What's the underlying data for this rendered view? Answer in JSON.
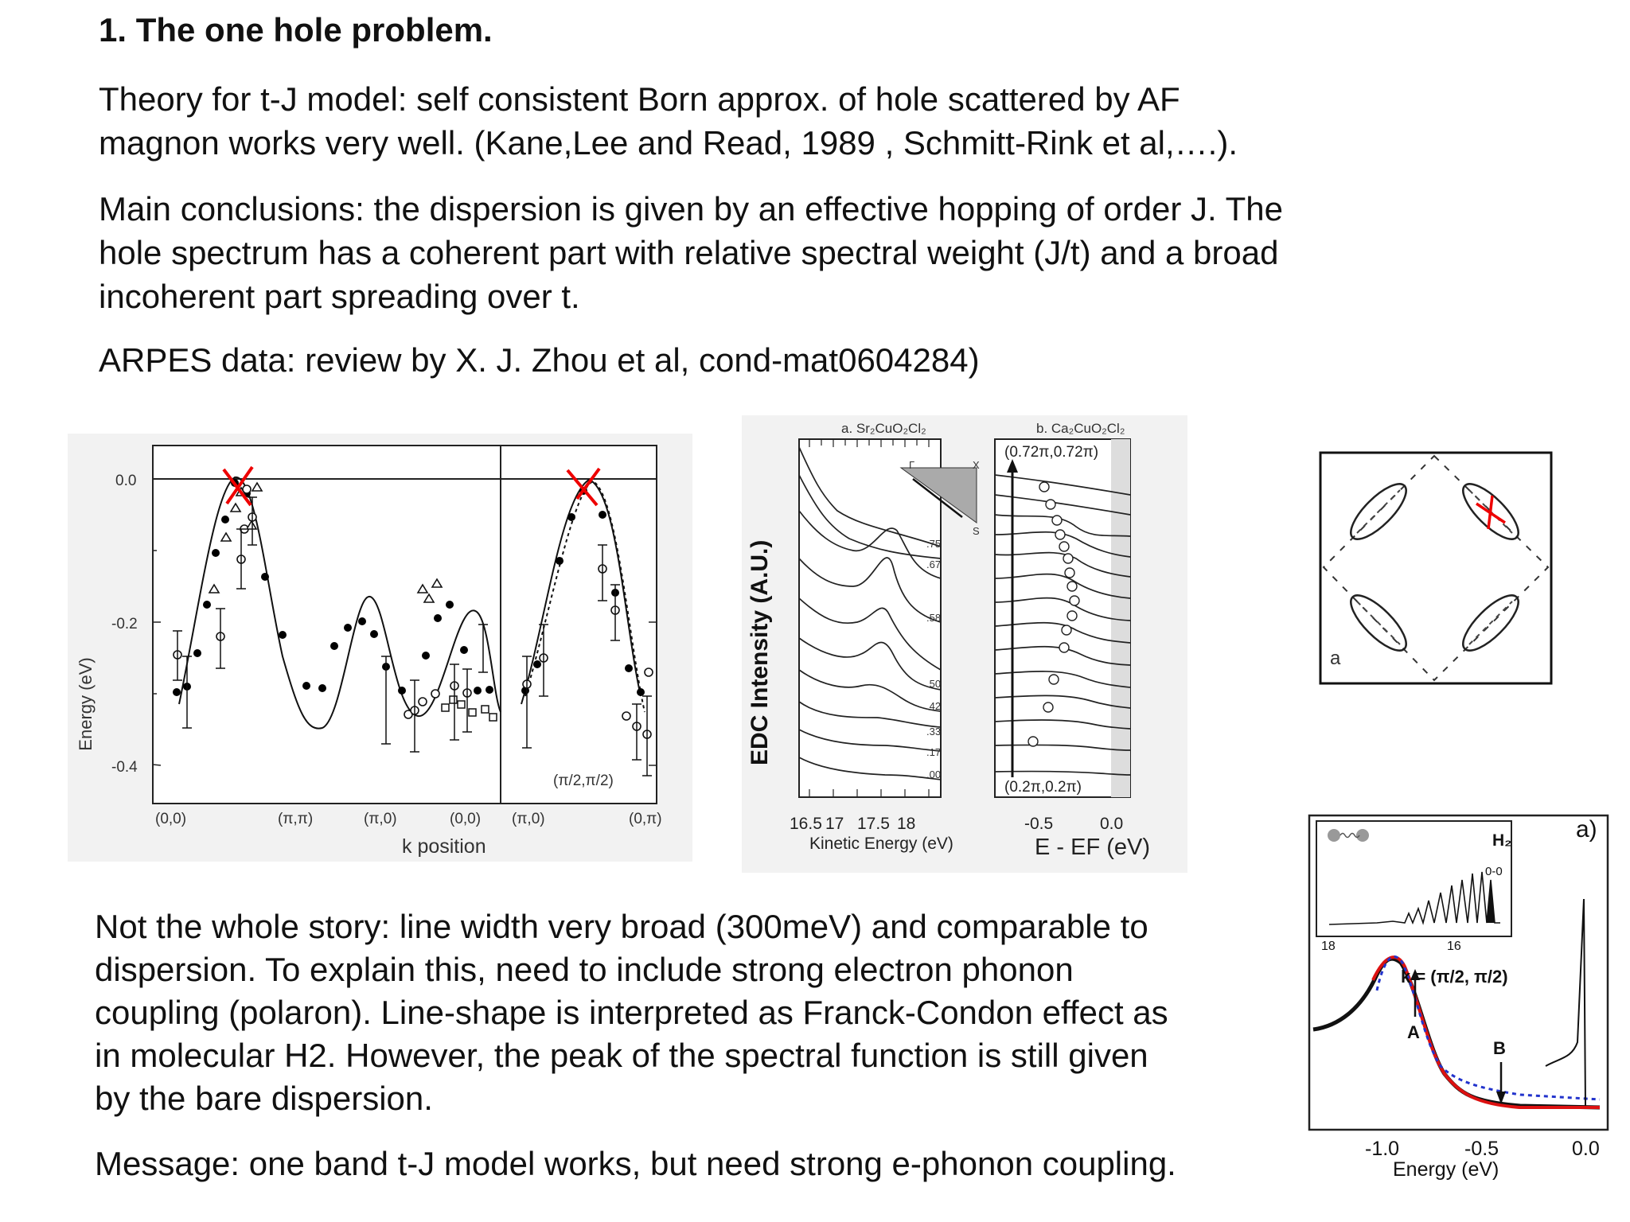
{
  "heading": "1. The one hole problem.",
  "paragraphs": {
    "p1_l1": "Theory for t-J model: self consistent Born approx. of hole scattered by AF",
    "p1_l2": "magnon works very well. (Kane,Lee and Read, 1989 , Schmitt-Rink et al,….).",
    "p2_l1": "Main conclusions: the dispersion is given by an effective hopping of order J. The",
    "p2_l2": "hole spectrum has a coherent part with relative spectral weight (J/t) and a broad",
    "p2_l3": "incoherent part spreading over t.",
    "p3": "ARPES data: review by X. J. Zhou et al, cond-mat0604284)",
    "p4_l1": "Not the whole story: line width very broad (300meV) and comparable to",
    "p4_l2": "dispersion. To explain this, need to include strong electron phonon",
    "p4_l3": "coupling (polaron). Line-shape is interpreted as Franck-Condon effect as",
    "p4_l4": "in molecular H2. However, the peak of the spectral function is still given",
    "p4_l5": "by the bare dispersion.",
    "p5": "Message: one band t-J model works, but need strong e-phonon coupling."
  },
  "fig1": {
    "ylabel": "Energy (eV)",
    "xlabel": "k position",
    "yticks": [
      "0.0",
      "-0.2",
      "-0.4"
    ],
    "xticks": [
      "(0,0)",
      "(π,π)",
      "(π,0)",
      "(0,0)",
      "(π,0)",
      "(0,π)"
    ],
    "annotation": "(π/2,π/2)"
  },
  "fig2": {
    "title_a": "a. Sr₂CuO₂Cl₂",
    "title_b": "b. Ca₂CuO₂Cl₂",
    "ylabel": "EDC Intensity (A.U.)",
    "xlabel_a": "Kinetic Energy (eV)",
    "xlabel_b": "E - EF (eV)",
    "xticks_a": [
      "16.5",
      "17",
      "17.5",
      "18"
    ],
    "xticks_b": [
      "-0.5",
      "0.0"
    ],
    "k_top": "(0.72π,0.72π)",
    "k_bottom": "(0.2π,0.2π)",
    "inset_gamma": "Γ",
    "inset_x": "X",
    "inset_s": "S",
    "curve_labels": [
      ".75",
      ".67",
      ".58",
      ".50",
      ".42",
      ".33",
      ".17",
      ".00"
    ]
  },
  "fig3": {
    "label": "a"
  },
  "fig4": {
    "label": "a)",
    "inset_label": "H₂",
    "inset_peak": "0-0",
    "inset_x_left": "18",
    "inset_x_right": "16",
    "k_label": "k = (π/2, π/2)",
    "marker_a": "A",
    "marker_b": "B",
    "xticks": [
      "-1.0",
      "-0.5",
      "0.0"
    ],
    "xlabel": "Energy (eV)"
  }
}
